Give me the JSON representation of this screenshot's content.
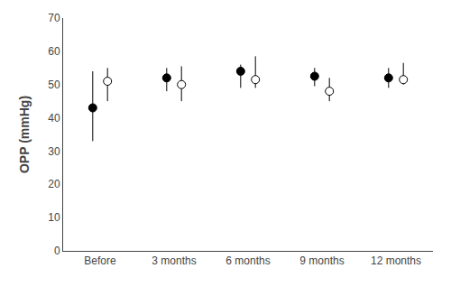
{
  "chart_data": {
    "type": "scatter",
    "categories": [
      "Before",
      "3 months",
      "6 months",
      "9 months",
      "12 months"
    ],
    "ylabel": "OPP (mmHg)",
    "ylim": [
      0,
      70
    ],
    "yticks": [
      0,
      10,
      20,
      30,
      40,
      50,
      60,
      70
    ],
    "grid": false,
    "series": [
      {
        "color": "#000000",
        "marker": "filled",
        "values": [
          43,
          52,
          54,
          52.5,
          52
        ],
        "error_upper": [
          11,
          3,
          2,
          2.5,
          3
        ],
        "error_lower": [
          10,
          4,
          5,
          3,
          3
        ]
      },
      {
        "color": "#000000",
        "marker": "open",
        "values": [
          51,
          50,
          51.5,
          48,
          51.5
        ],
        "error_upper": [
          4,
          5.5,
          7,
          4,
          5
        ],
        "error_lower": [
          6,
          5,
          2.5,
          3,
          1.5
        ]
      }
    ]
  }
}
